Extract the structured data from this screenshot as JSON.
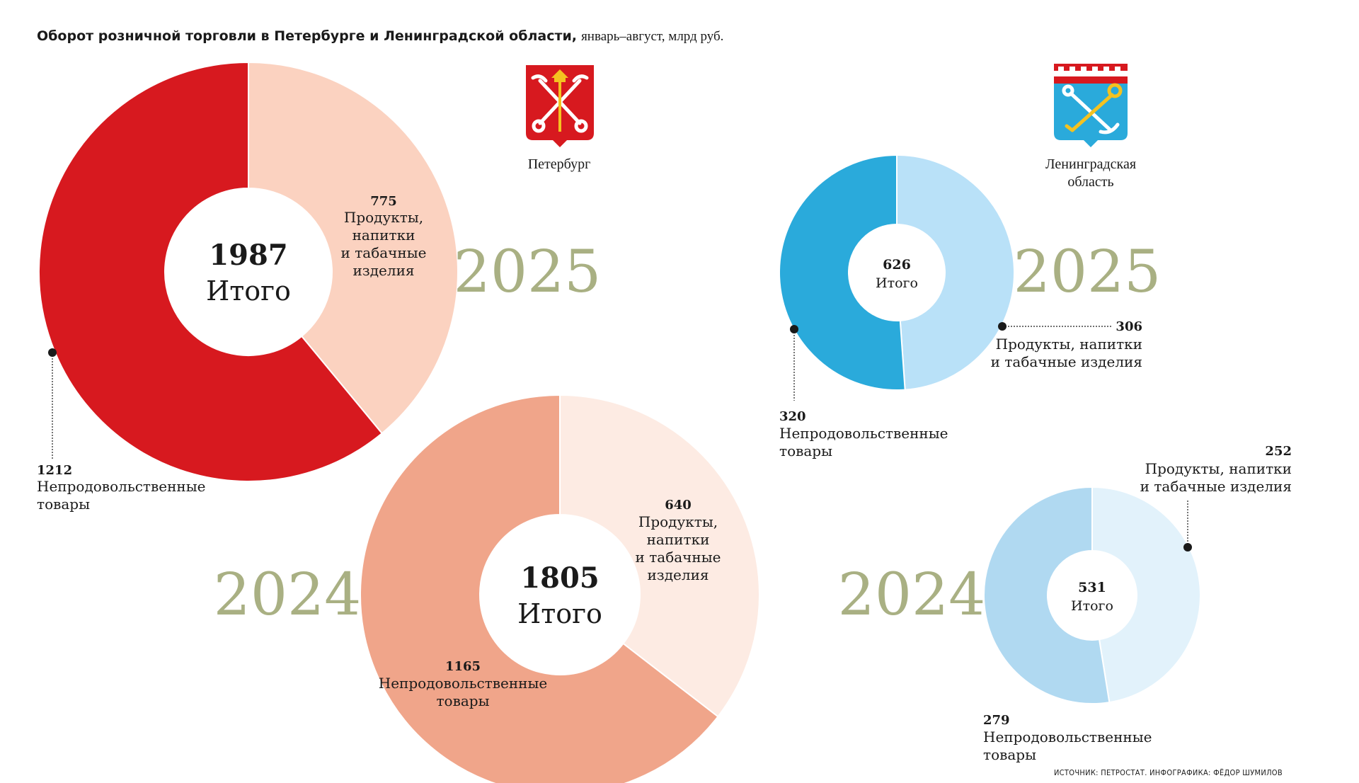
{
  "title": {
    "main": "Оборот розничной торговли в Петербурге и Ленинградской области,",
    "sub": "январь–август, млрд руб."
  },
  "source": "ИСТОЧНИК: ПЕТРОСТАТ. ИНФОГРАФИКА: ФЁДОР ШУМИЛОВ",
  "regions": {
    "spb": {
      "label": "Петербург",
      "crest_icon": "spb-coat-of-arms-icon"
    },
    "lo": {
      "label_lines": [
        "Ленинградская",
        "область"
      ],
      "crest_icon": "leningrad-oblast-coat-of-arms-icon"
    }
  },
  "chart_data": [
    {
      "type": "pie",
      "region": "Петербург",
      "year": "2025",
      "total": 1987,
      "total_label": "Итого",
      "slices": [
        {
          "label_lines": [
            "Продукты,",
            "напитки",
            "и табачные",
            "изделия"
          ],
          "value": 775,
          "color": "#fbd2c0"
        },
        {
          "label_lines": [
            "Непродовольственные",
            "товары"
          ],
          "value": 1212,
          "color": "#d7191f"
        }
      ]
    },
    {
      "type": "pie",
      "region": "Петербург",
      "year": "2024",
      "total": 1805,
      "total_label": "Итого",
      "slices": [
        {
          "label_lines": [
            "Продукты,",
            "напитки",
            "и табачные",
            "изделия"
          ],
          "value": 640,
          "color": "#fdebe3"
        },
        {
          "label_lines": [
            "Непродовольственные",
            "товары"
          ],
          "value": 1165,
          "color": "#f0a58a"
        }
      ]
    },
    {
      "type": "pie",
      "region": "Ленинградская область",
      "year": "2025",
      "total": 626,
      "total_label": "Итого",
      "slices": [
        {
          "label_lines": [
            "Продукты, напитки",
            "и табачные изделия"
          ],
          "value": 306,
          "color": "#b9e1f8"
        },
        {
          "label_lines": [
            "Непродовольственные",
            "товары"
          ],
          "value": 320,
          "color": "#2aaadb"
        }
      ]
    },
    {
      "type": "pie",
      "region": "Ленинградская область",
      "year": "2024",
      "total": 531,
      "total_label": "Итого",
      "slices": [
        {
          "label_lines": [
            "Продукты, напитки",
            "и табачные изделия"
          ],
          "value": 252,
          "color": "#e2f2fb"
        },
        {
          "label_lines": [
            "Непродовольственные",
            "товары"
          ],
          "value": 279,
          "color": "#b0d9f1"
        }
      ]
    }
  ],
  "colors": {
    "year": "#a9b083",
    "text": "#1a1a1a",
    "leader": "#1a1a1a"
  }
}
